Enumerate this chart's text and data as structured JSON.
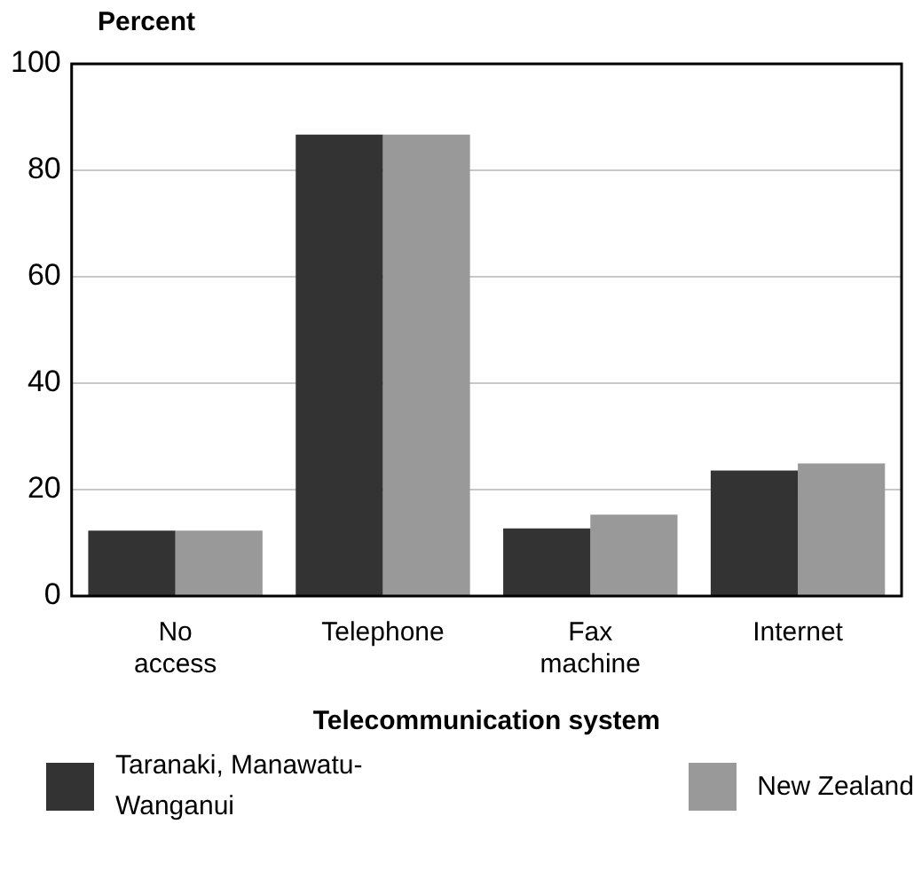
{
  "chart_data": {
    "type": "bar",
    "ylabel": "Percent",
    "xlabel": "Telecommunication system",
    "categories": [
      "No access",
      "Telephone",
      "Fax machine",
      "Internet"
    ],
    "series": [
      {
        "name": "Taranaki, Manawatu-Wanganui",
        "color": "#333333",
        "values": [
          12.3,
          86.7,
          12.7,
          23.6
        ]
      },
      {
        "name": "New Zealand",
        "color": "#999999",
        "values": [
          12.3,
          86.7,
          15.3,
          24.9
        ]
      }
    ],
    "ylim": [
      0,
      100
    ],
    "yticks": [
      0,
      20,
      40,
      60,
      80,
      100
    ],
    "grid": "y",
    "legend": "bottom"
  }
}
